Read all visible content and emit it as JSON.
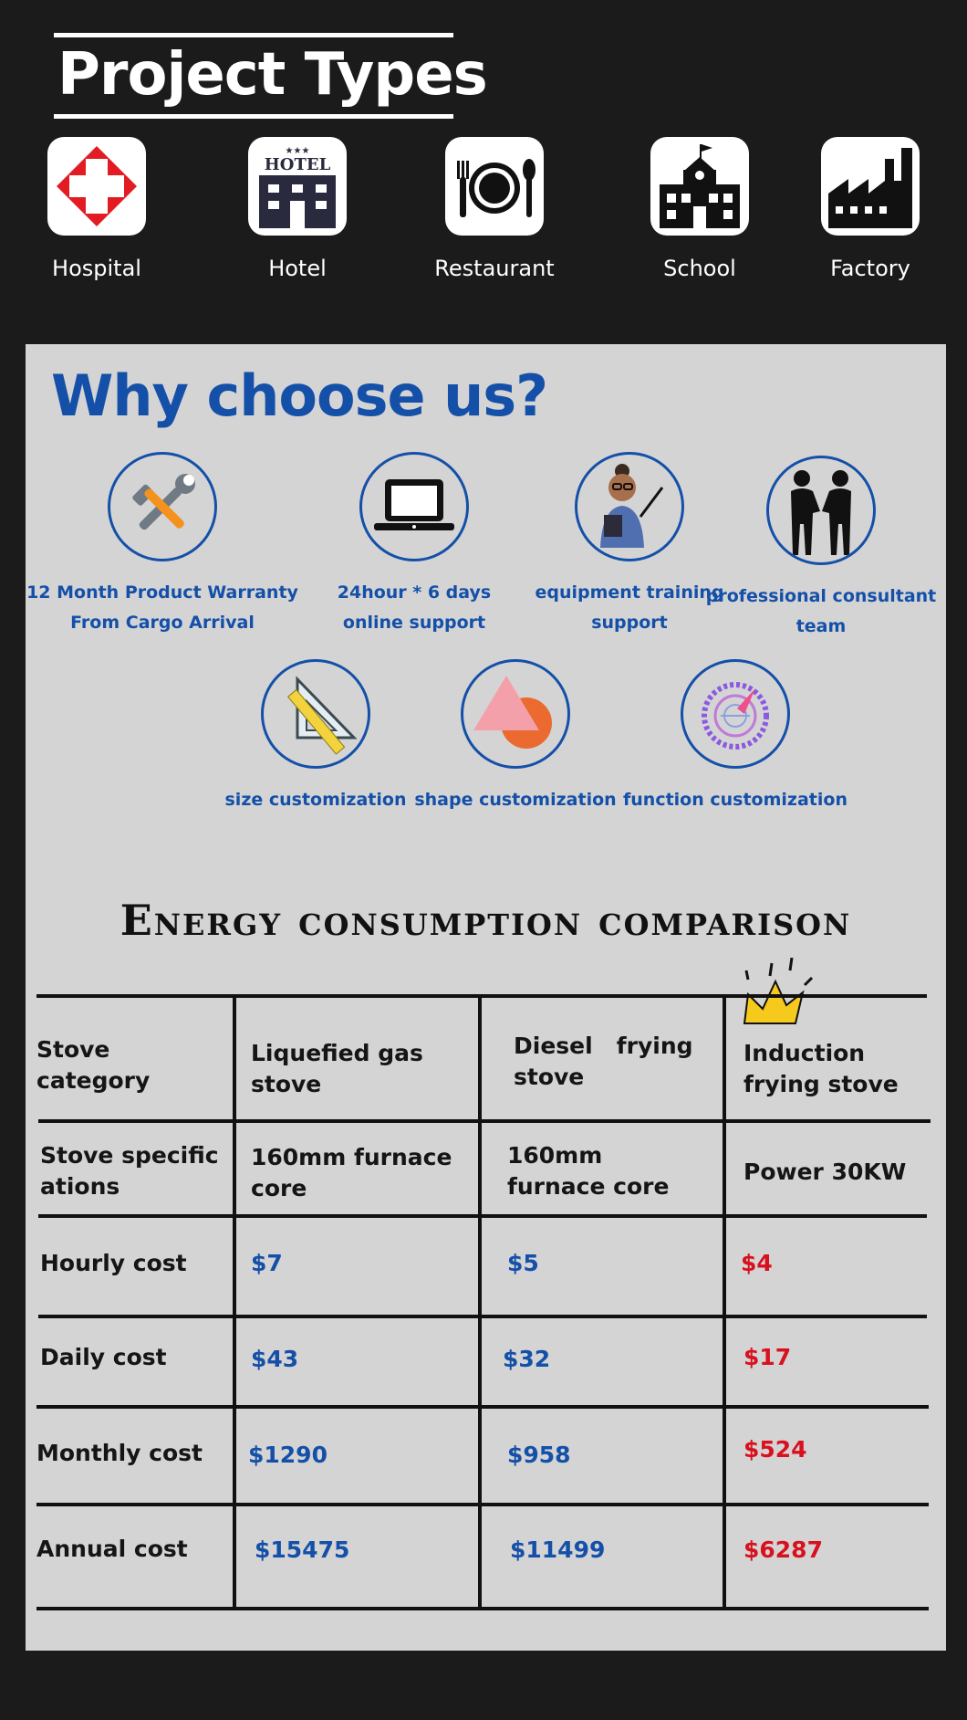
{
  "project_types": {
    "title": "Project Types",
    "items": [
      {
        "label": "Hospital",
        "icon": "hospital-cross-icon"
      },
      {
        "label": "Hotel",
        "icon": "hotel-building-icon",
        "sign": "HOTEL"
      },
      {
        "label": "Restaurant",
        "icon": "plate-fork-spoon-icon"
      },
      {
        "label": "School",
        "icon": "school-building-icon"
      },
      {
        "label": "Factory",
        "icon": "factory-icon"
      }
    ]
  },
  "why": {
    "title": "Why choose us?",
    "features": [
      {
        "line1": "12 Month Product Warranty",
        "line2": "From Cargo Arrival",
        "icon": "tools-icon"
      },
      {
        "line1": "24hour * 6 days",
        "line2": "online support",
        "icon": "laptop-icon"
      },
      {
        "line1": "equipment training",
        "line2": "support",
        "icon": "trainer-icon"
      },
      {
        "line1": "professional consultant",
        "line2": "team",
        "icon": "handshake-icon"
      },
      {
        "line1": "size customization",
        "icon": "ruler-triangle-icon"
      },
      {
        "line1": "shape customization",
        "icon": "shapes-icon"
      },
      {
        "line1": "function customization",
        "icon": "dial-icon"
      }
    ]
  },
  "comparison": {
    "title": "Energy consumption comparison",
    "crown_icon": "crown-icon",
    "header": {
      "label": "Stove category",
      "col1": "Liquefied gas stove",
      "col2": "Diesel   frying stove",
      "col3": "Induction frying stove"
    },
    "rows": [
      {
        "label": "Stove specifications",
        "col1": "160mm furnace core",
        "col2": "160mm furnace core",
        "col3": "Power 30KW"
      },
      {
        "label": "Hourly cost",
        "col1": "$7",
        "col2": "$5",
        "col3": "$4"
      },
      {
        "label": "Daily cost",
        "col1": "$43",
        "col2": "$32",
        "col3": "$17"
      },
      {
        "label": "Monthly cost",
        "col1": "$1290",
        "col2": "$958",
        "col3": "$524"
      },
      {
        "label": "Annual cost",
        "col1": "$15475",
        "col2": "$11499",
        "col3": "$6287"
      }
    ],
    "colors": {
      "text": "#151515",
      "blue": "#1450a8",
      "red": "#d8111e"
    }
  }
}
